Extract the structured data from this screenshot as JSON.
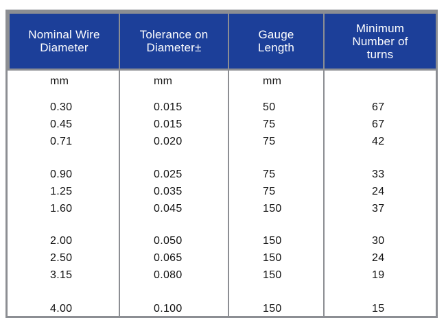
{
  "table": {
    "headers": [
      "Nominal Wire\nDiameter",
      "Tolerance on\nDiameter±",
      "Gauge\nLength",
      "Minimum\nNumber of\nturns"
    ],
    "units": [
      "mm",
      "mm",
      "mm",
      ""
    ],
    "groups": [
      [
        [
          "0.30",
          "0.015",
          "50",
          "67"
        ],
        [
          "0.45",
          "0.015",
          "75",
          "67"
        ],
        [
          "0.71",
          "0.020",
          "75",
          "42"
        ]
      ],
      [
        [
          "0.90",
          "0.025",
          "75",
          "33"
        ],
        [
          "1.25",
          "0.035",
          "75",
          "24"
        ],
        [
          "1.60",
          "0.045",
          "150",
          "37"
        ]
      ],
      [
        [
          "2.00",
          "0.050",
          "150",
          "30"
        ],
        [
          "2.50",
          "0.065",
          "150",
          "24"
        ],
        [
          "3.15",
          "0.080",
          "150",
          "19"
        ]
      ],
      [
        [
          "4.00",
          "0.100",
          "150",
          "15"
        ]
      ]
    ],
    "colors": {
      "header_bg": "#1c3f99",
      "header_text": "#ffffff",
      "border": "#8c8e93"
    }
  }
}
